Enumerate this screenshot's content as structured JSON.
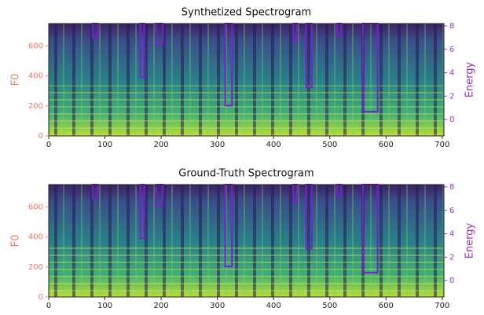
{
  "chart_data": [
    {
      "type": "spectrogram",
      "title": "Synthetized Spectrogram",
      "xlim": [
        0,
        703
      ],
      "xticks": [
        0,
        100,
        200,
        300,
        400,
        500,
        600,
        700
      ],
      "ylabel": "F0",
      "ylim": [
        0,
        750
      ],
      "yticks": [
        0,
        200,
        400,
        600
      ],
      "y_color": "#f07860",
      "y2label": "Energy",
      "y2lim": [
        -1.4,
        8.2
      ],
      "y2ticks": [
        0,
        2,
        4,
        6,
        8
      ],
      "y2_color": "#9932cc",
      "energy": {
        "x0": [
          78,
          163,
          191,
          314,
          435,
          458,
          513,
          559
        ],
        "x1": [
          87,
          170,
          203,
          326,
          442,
          468,
          520,
          585
        ],
        "values": [
          7.0,
          3.6,
          6.4,
          1.2,
          6.7,
          2.75,
          7.2,
          0.67
        ],
        "color": "#7a1fd0"
      }
    },
    {
      "type": "spectrogram",
      "title": "Ground-Truth Spectrogram",
      "xlim": [
        0,
        703
      ],
      "xticks": [
        0,
        100,
        200,
        300,
        400,
        500,
        600,
        700
      ],
      "ylabel": "F0",
      "ylim": [
        0,
        750
      ],
      "yticks": [
        0,
        200,
        400,
        600
      ],
      "y_color": "#f07860",
      "y2label": "Energy",
      "y2lim": [
        -1.4,
        8.2
      ],
      "y2ticks": [
        0,
        2,
        4,
        6,
        8
      ],
      "y2_color": "#9932cc",
      "energy": {
        "x0": [
          78,
          163,
          191,
          314,
          435,
          458,
          513,
          559
        ],
        "x1": [
          87,
          170,
          203,
          326,
          442,
          468,
          520,
          585
        ],
        "values": [
          7.0,
          3.6,
          6.4,
          1.2,
          6.7,
          2.75,
          7.2,
          0.67
        ],
        "color": "#7a1fd0"
      }
    }
  ]
}
